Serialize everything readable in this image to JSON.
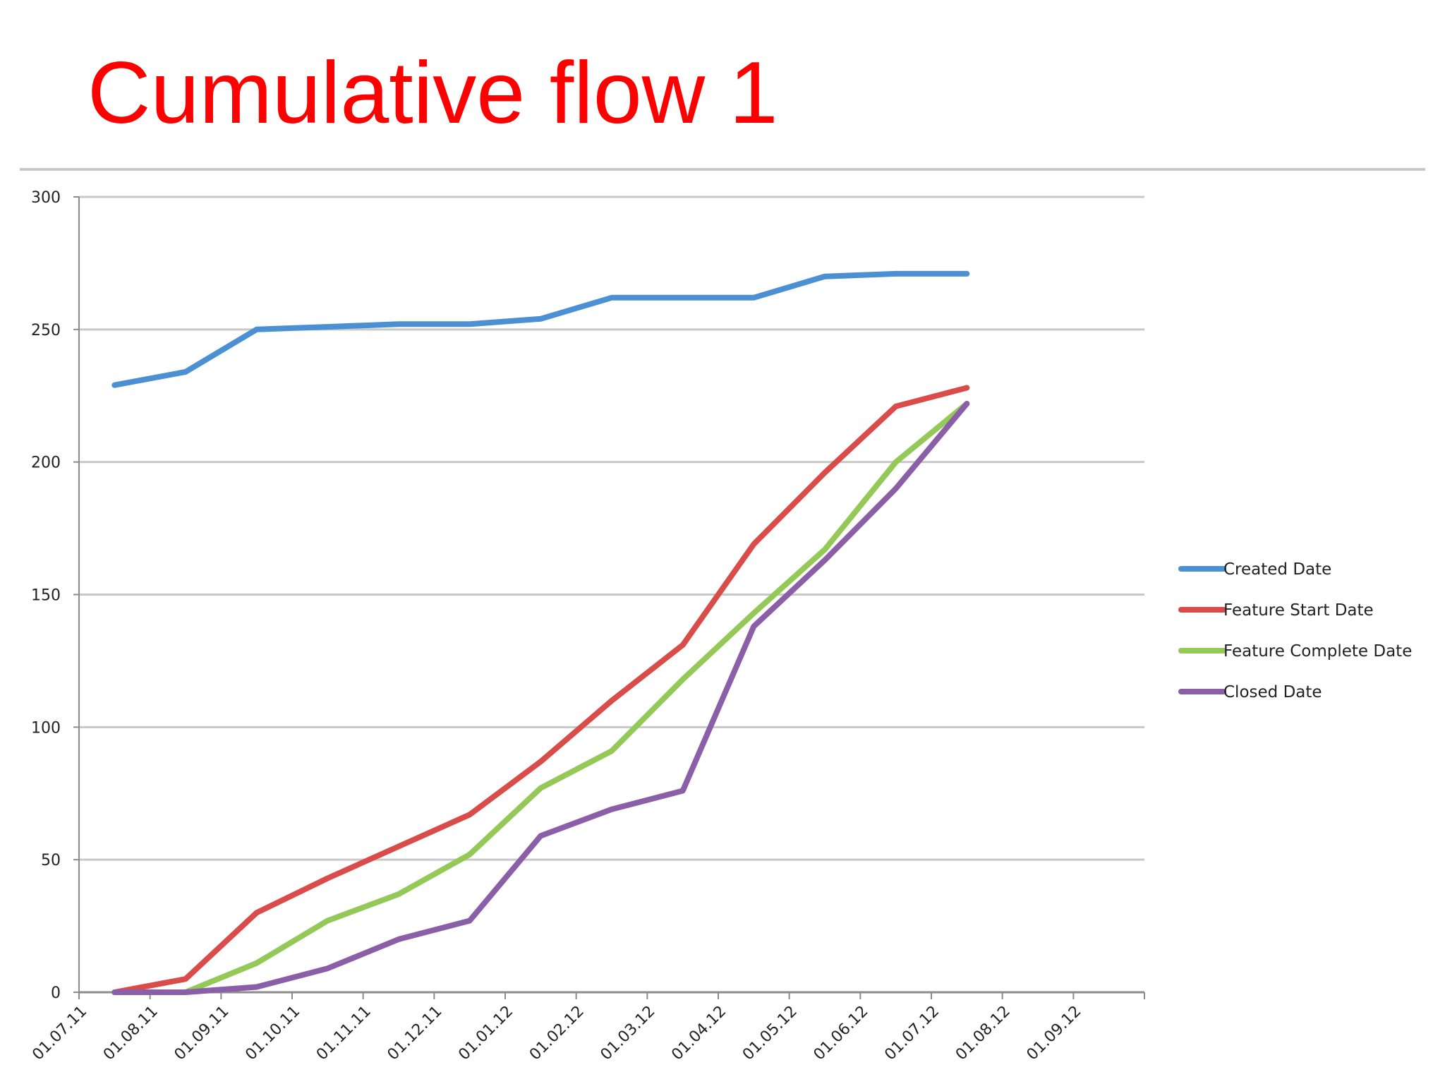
{
  "slide": {
    "title": "Cumulative flow 1"
  },
  "colors": {
    "title": "#ff0000",
    "gridline": "#c8c8c8",
    "axis": "#8c8c8c",
    "created": "#4a90d2",
    "feature_start": "#d94c4a",
    "feature_complete": "#94c857",
    "closed": "#8a5fa8"
  },
  "chart_data": {
    "type": "line",
    "title": "",
    "xlabel": "",
    "ylabel": "",
    "ylim": [
      0,
      300
    ],
    "y_ticks": [
      0,
      50,
      100,
      150,
      200,
      250,
      300
    ],
    "grid": true,
    "legend_position": "right",
    "x_tick_labels": [
      "01.07.11",
      "01.08.11",
      "01.09.11",
      "01.10.11",
      "01.11.11",
      "01.12.11",
      "01.01.12",
      "01.02.12",
      "01.03.12",
      "01.04.12",
      "01.05.12",
      "01.06.12",
      "01.07.12",
      "01.08.12",
      "01.09.12"
    ],
    "x": [
      "15.07.11",
      "15.08.11",
      "15.09.11",
      "15.10.11",
      "15.11.11",
      "15.12.11",
      "15.01.12",
      "15.02.12",
      "15.03.12",
      "15.04.12",
      "15.05.12",
      "15.06.12",
      "15.07.12"
    ],
    "series": [
      {
        "name": "Created Date",
        "color": "#4a90d2",
        "values": [
          229,
          234,
          250,
          251,
          252,
          252,
          254,
          262,
          262,
          262,
          270,
          271,
          271
        ]
      },
      {
        "name": "Feature Start Date",
        "color": "#d94c4a",
        "values": [
          0,
          5,
          30,
          43,
          55,
          67,
          87,
          110,
          131,
          169,
          196,
          221,
          228
        ]
      },
      {
        "name": "Feature Complete Date",
        "color": "#94c857",
        "values": [
          0,
          0,
          11,
          27,
          37,
          52,
          77,
          91,
          118,
          143,
          167,
          200,
          222
        ]
      },
      {
        "name": "Closed Date",
        "color": "#8a5fa8",
        "values": [
          0,
          0,
          2,
          9,
          20,
          27,
          59,
          69,
          76,
          138,
          163,
          190,
          222
        ]
      }
    ]
  }
}
